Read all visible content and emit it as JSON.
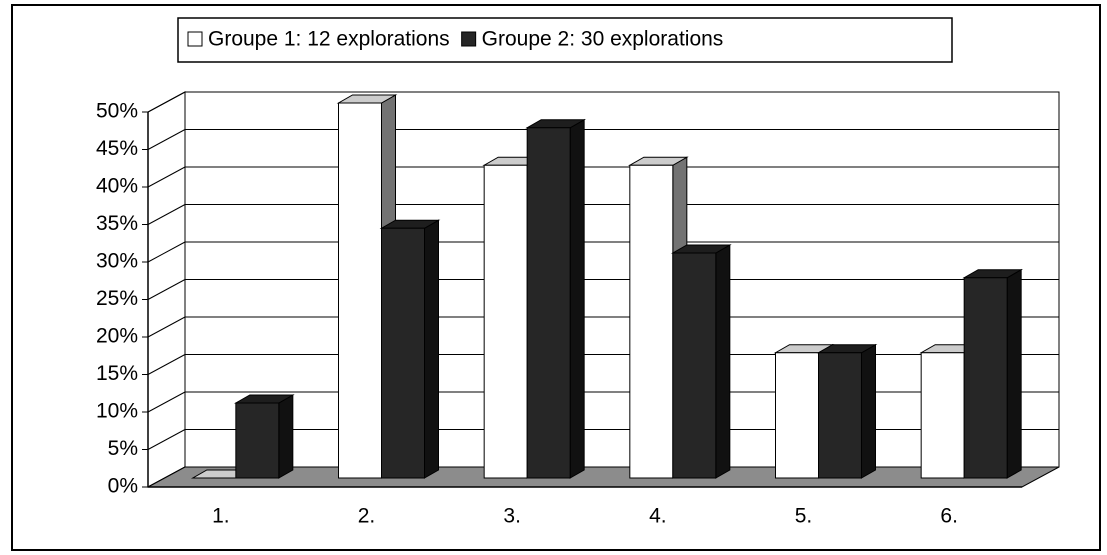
{
  "chart_data": {
    "type": "bar",
    "categories": [
      "1.",
      "2.",
      "3.",
      "4.",
      "5.",
      "6."
    ],
    "series": [
      {
        "name": "Groupe 1: 12 explorations",
        "color": "#ffffff",
        "values": [
          0,
          50,
          41.7,
          41.7,
          16.7,
          16.7
        ]
      },
      {
        "name": "Groupe 2: 30 explorations",
        "color": "#262626",
        "values": [
          10,
          33.3,
          46.7,
          30,
          16.7,
          26.7
        ]
      }
    ],
    "ylim": [
      0,
      50
    ],
    "yticks": [
      {
        "value": 0,
        "label": "0%"
      },
      {
        "value": 5,
        "label": "5%"
      },
      {
        "value": 10,
        "label": "10%"
      },
      {
        "value": 15,
        "label": "15%"
      },
      {
        "value": 20,
        "label": "20%"
      },
      {
        "value": 25,
        "label": "25%"
      },
      {
        "value": 30,
        "label": "30%"
      },
      {
        "value": 35,
        "label": "35%"
      },
      {
        "value": 40,
        "label": "40%"
      },
      {
        "value": 45,
        "label": "45%"
      },
      {
        "value": 50,
        "label": "50%"
      }
    ],
    "grid": true,
    "legend": "top"
  }
}
